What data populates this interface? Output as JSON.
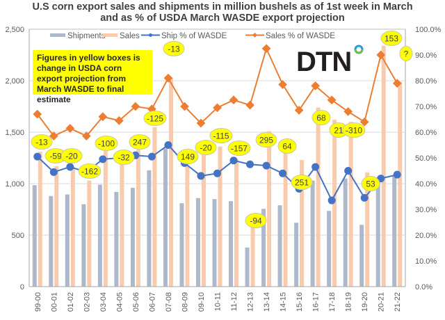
{
  "title_line1": "U.S corn export sales and shipments in million bushels as of 1st week in March",
  "title_line2": "and as % of USDA March WASDE export projection",
  "note": "Figures in yellow boxes is change in USDA corn export projection from March WASDE to final estimate",
  "logo": "DTN",
  "colors": {
    "shipments": "#adb9ca",
    "sales": "#f8cbad",
    "ship_pct": "#4472c4",
    "sales_pct": "#ed7d31",
    "bubble": "#ffff00",
    "grid": "#d9d9d9"
  },
  "chart_data": {
    "type": "bar",
    "title": "U.S corn export sales and shipments in million bushels as of 1st week in March and as % of USDA March WASDE export projection",
    "categories": [
      "99-00",
      "00-01",
      "01-02",
      "02-03",
      "03-04",
      "04-05",
      "05-06",
      "06-07",
      "07-08",
      "08-09",
      "09-10",
      "10-11",
      "11-12",
      "12-13",
      "13-14",
      "14-15",
      "15-16",
      "16-17",
      "17-18",
      "18-19",
      "19-20",
      "20-21",
      "21-22"
    ],
    "series": [
      {
        "name": "Shipments",
        "type": "bar",
        "axis": "left",
        "values": [
          985,
          880,
          895,
          800,
          990,
          920,
          960,
          1130,
          1340,
          810,
          860,
          850,
          830,
          380,
          755,
          790,
          620,
          1030,
          735,
          1050,
          600,
          1060,
          1080
        ]
      },
      {
        "name": "Sales",
        "type": "bar",
        "axis": "left",
        "values": [
          1310,
          1170,
          1160,
          1030,
          1320,
          1190,
          1330,
          1550,
          2030,
          1170,
          1280,
          1360,
          1240,
          580,
          1510,
          1430,
          1230,
          1740,
          1620,
          1600,
          1110,
          2340,
          1990
        ]
      },
      {
        "name": "Ship %  of WASDE",
        "type": "line",
        "axis": "right",
        "values": [
          50.5,
          44.5,
          46.5,
          44.5,
          49.5,
          50,
          51,
          50.5,
          55,
          48,
          43,
          44,
          49,
          47.5,
          47,
          44,
          38,
          46.5,
          33.5,
          45,
          34.5,
          42,
          43.5
        ]
      },
      {
        "name": "Sales % of WASDE",
        "type": "line",
        "axis": "right",
        "values": [
          67,
          58.5,
          61.5,
          58.5,
          66,
          64.5,
          70,
          69,
          81,
          70,
          63.5,
          69.5,
          72.5,
          70.5,
          92.5,
          78.5,
          68.5,
          78,
          72.5,
          68,
          64,
          90,
          79
        ]
      }
    ],
    "annotations": [
      "-13",
      "-59",
      "-20",
      "-162",
      "-100",
      "-32",
      "247",
      "-125",
      "-13",
      "149",
      "-20",
      "-115",
      "-157",
      "-94",
      "295",
      "64",
      "251",
      "68",
      "21",
      "-310",
      "53",
      "153",
      "?"
    ],
    "ylim": [
      0,
      2500
    ],
    "y_ticks": [
      "0",
      "500",
      "1,000",
      "1,500",
      "2,000",
      "2,500"
    ],
    "y2lim": [
      0,
      100
    ],
    "y2_ticks": [
      "0.0%",
      "10.0%",
      "20.0%",
      "30.0%",
      "40.0%",
      "50.0%",
      "60.0%",
      "70.0%",
      "80.0%",
      "90.0%",
      "100.0%"
    ],
    "xlabel": "",
    "ylabel": "",
    "legend": [
      "Shipments",
      "Sales",
      "Ship %  of WASDE",
      "Sales % of WASDE"
    ],
    "legend_position": "top",
    "grid": true
  }
}
